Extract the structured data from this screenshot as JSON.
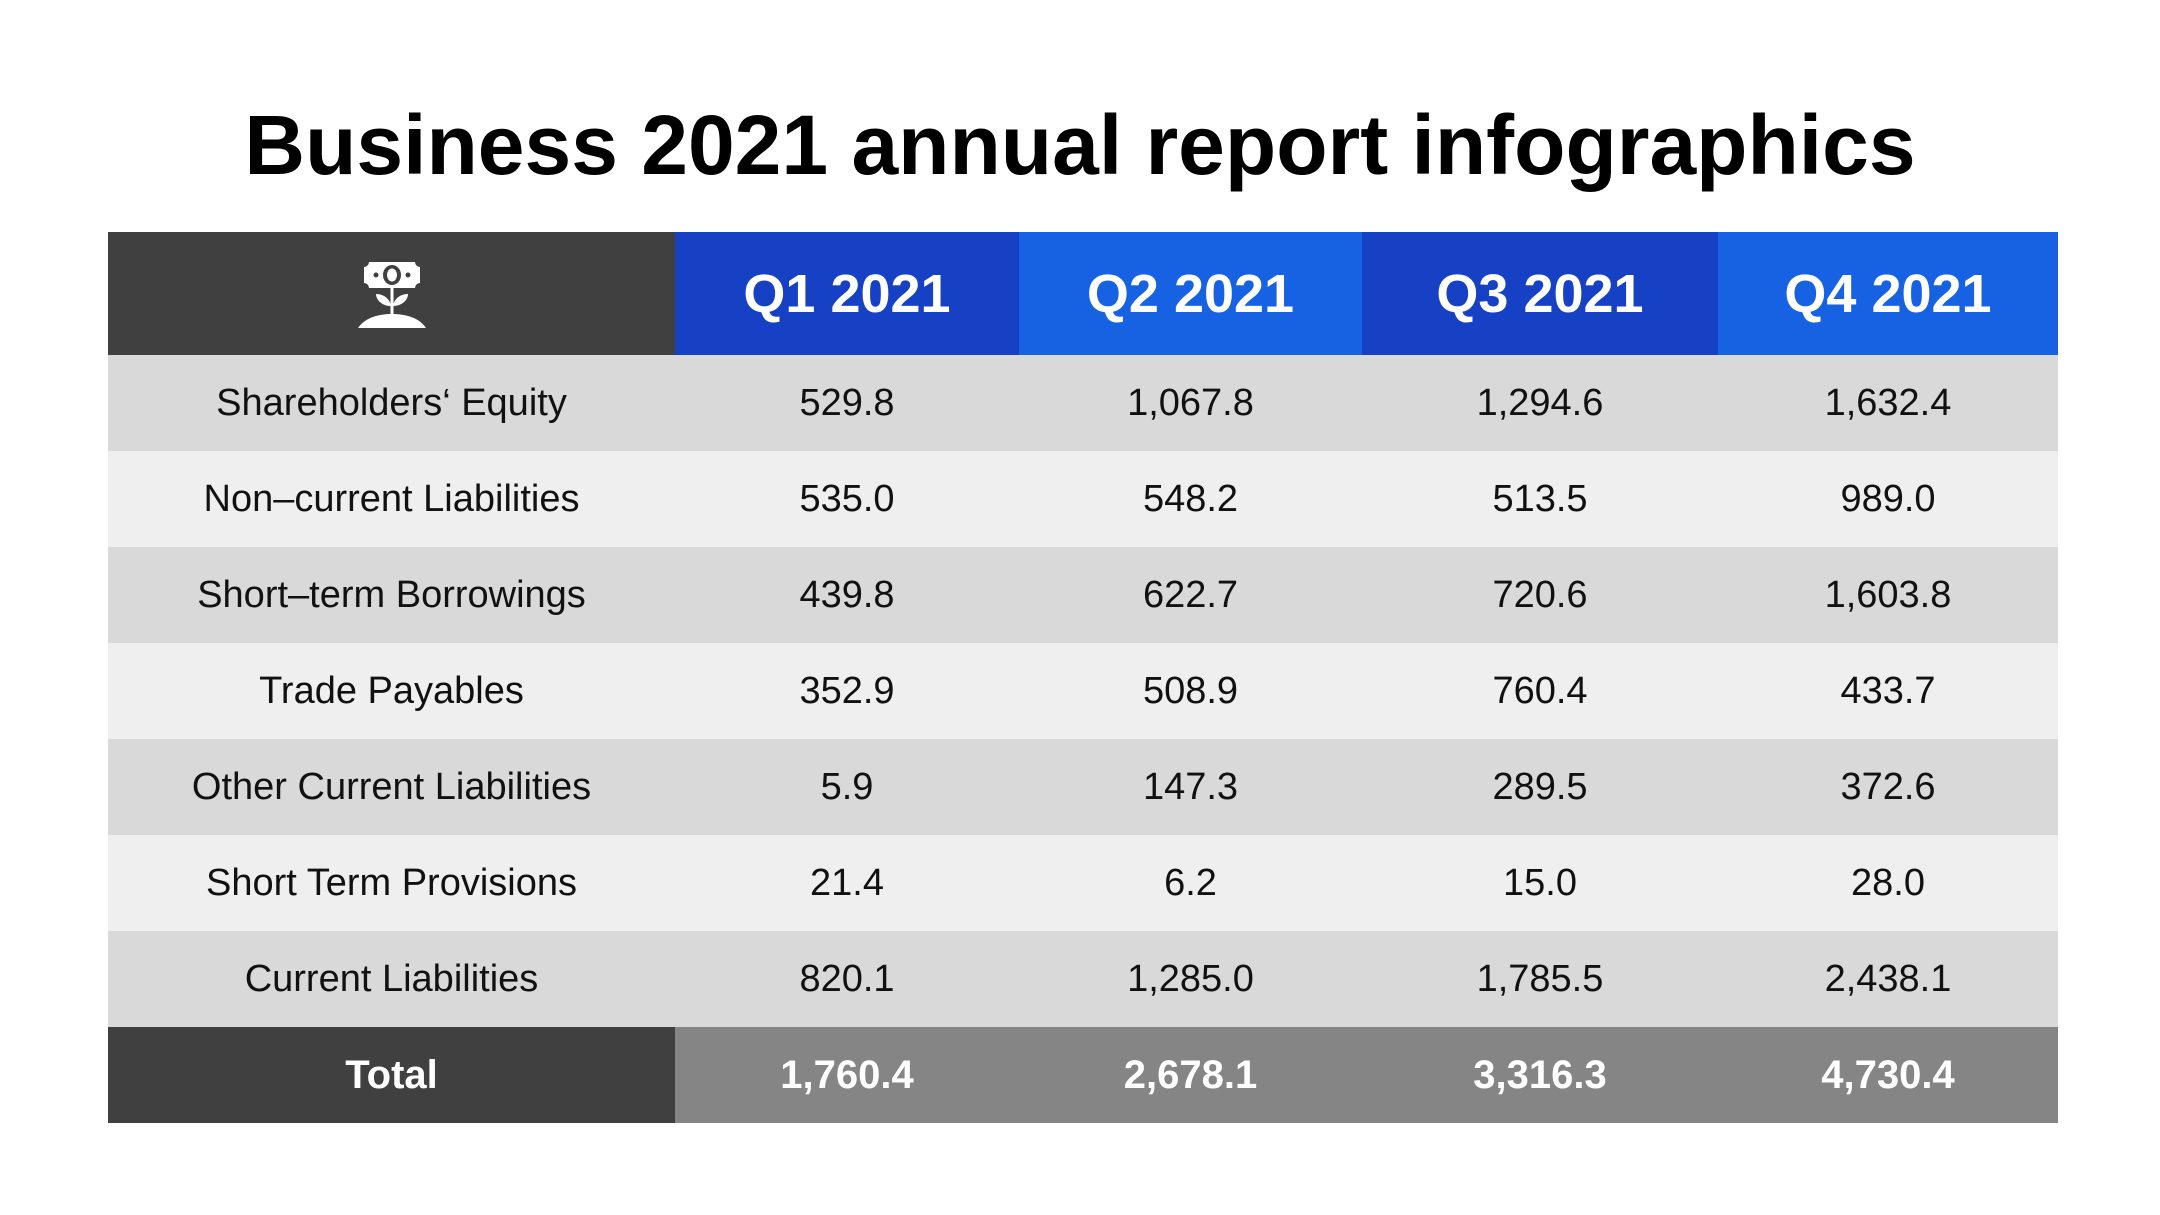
{
  "title": "Business 2021 annual report infographics",
  "header": {
    "icon": "money-plant-icon",
    "columns": [
      "Q1 2021",
      "Q2 2021",
      "Q3 2021",
      "Q4 2021"
    ]
  },
  "rows": [
    {
      "label": "Shareholders‘ Equity",
      "values": [
        "529.8",
        "1,067.8",
        "1,294.6",
        "1,632.4"
      ]
    },
    {
      "label": "Non–current Liabilities",
      "values": [
        "535.0",
        "548.2",
        "513.5",
        "989.0"
      ]
    },
    {
      "label": "Short–term Borrowings",
      "values": [
        "439.8",
        "622.7",
        "720.6",
        "1,603.8"
      ]
    },
    {
      "label": "Trade Payables",
      "values": [
        "352.9",
        "508.9",
        "760.4",
        "433.7"
      ]
    },
    {
      "label": "Other Current Liabilities",
      "values": [
        "5.9",
        "147.3",
        "289.5",
        "372.6"
      ]
    },
    {
      "label": "Short Term Provisions",
      "values": [
        "21.4",
        "6.2",
        "15.0",
        "28.0"
      ]
    },
    {
      "label": "Current Liabilities",
      "values": [
        "820.1",
        "1,285.0",
        "1,785.5",
        "2,438.1"
      ]
    }
  ],
  "total": {
    "label": "Total",
    "values": [
      "1,760.4",
      "2,678.1",
      "3,316.3",
      "4,730.4"
    ]
  },
  "colors": {
    "header_dark": "#404040",
    "quarter_dark": "#1741c5",
    "quarter_light": "#1762e2",
    "row_odd": "#d9d9d9",
    "row_even": "#efefef",
    "total_values": "#858585"
  },
  "chart_data": {
    "type": "table",
    "title": "Business 2021 annual report infographics",
    "columns": [
      "Q1 2021",
      "Q2 2021",
      "Q3 2021",
      "Q4 2021"
    ],
    "rows": [
      {
        "label": "Shareholders‘ Equity",
        "values": [
          529.8,
          1067.8,
          1294.6,
          1632.4
        ]
      },
      {
        "label": "Non–current Liabilities",
        "values": [
          535.0,
          548.2,
          513.5,
          989.0
        ]
      },
      {
        "label": "Short–term Borrowings",
        "values": [
          439.8,
          622.7,
          720.6,
          1603.8
        ]
      },
      {
        "label": "Trade Payables",
        "values": [
          352.9,
          508.9,
          760.4,
          433.7
        ]
      },
      {
        "label": "Other Current Liabilities",
        "values": [
          5.9,
          147.3,
          289.5,
          372.6
        ]
      },
      {
        "label": "Short Term Provisions",
        "values": [
          21.4,
          6.2,
          15.0,
          28.0
        ]
      },
      {
        "label": "Current Liabilities",
        "values": [
          820.1,
          1285.0,
          1785.5,
          2438.1
        ]
      }
    ],
    "total": {
      "label": "Total",
      "values": [
        1760.4,
        2678.1,
        3316.3,
        4730.4
      ]
    }
  }
}
